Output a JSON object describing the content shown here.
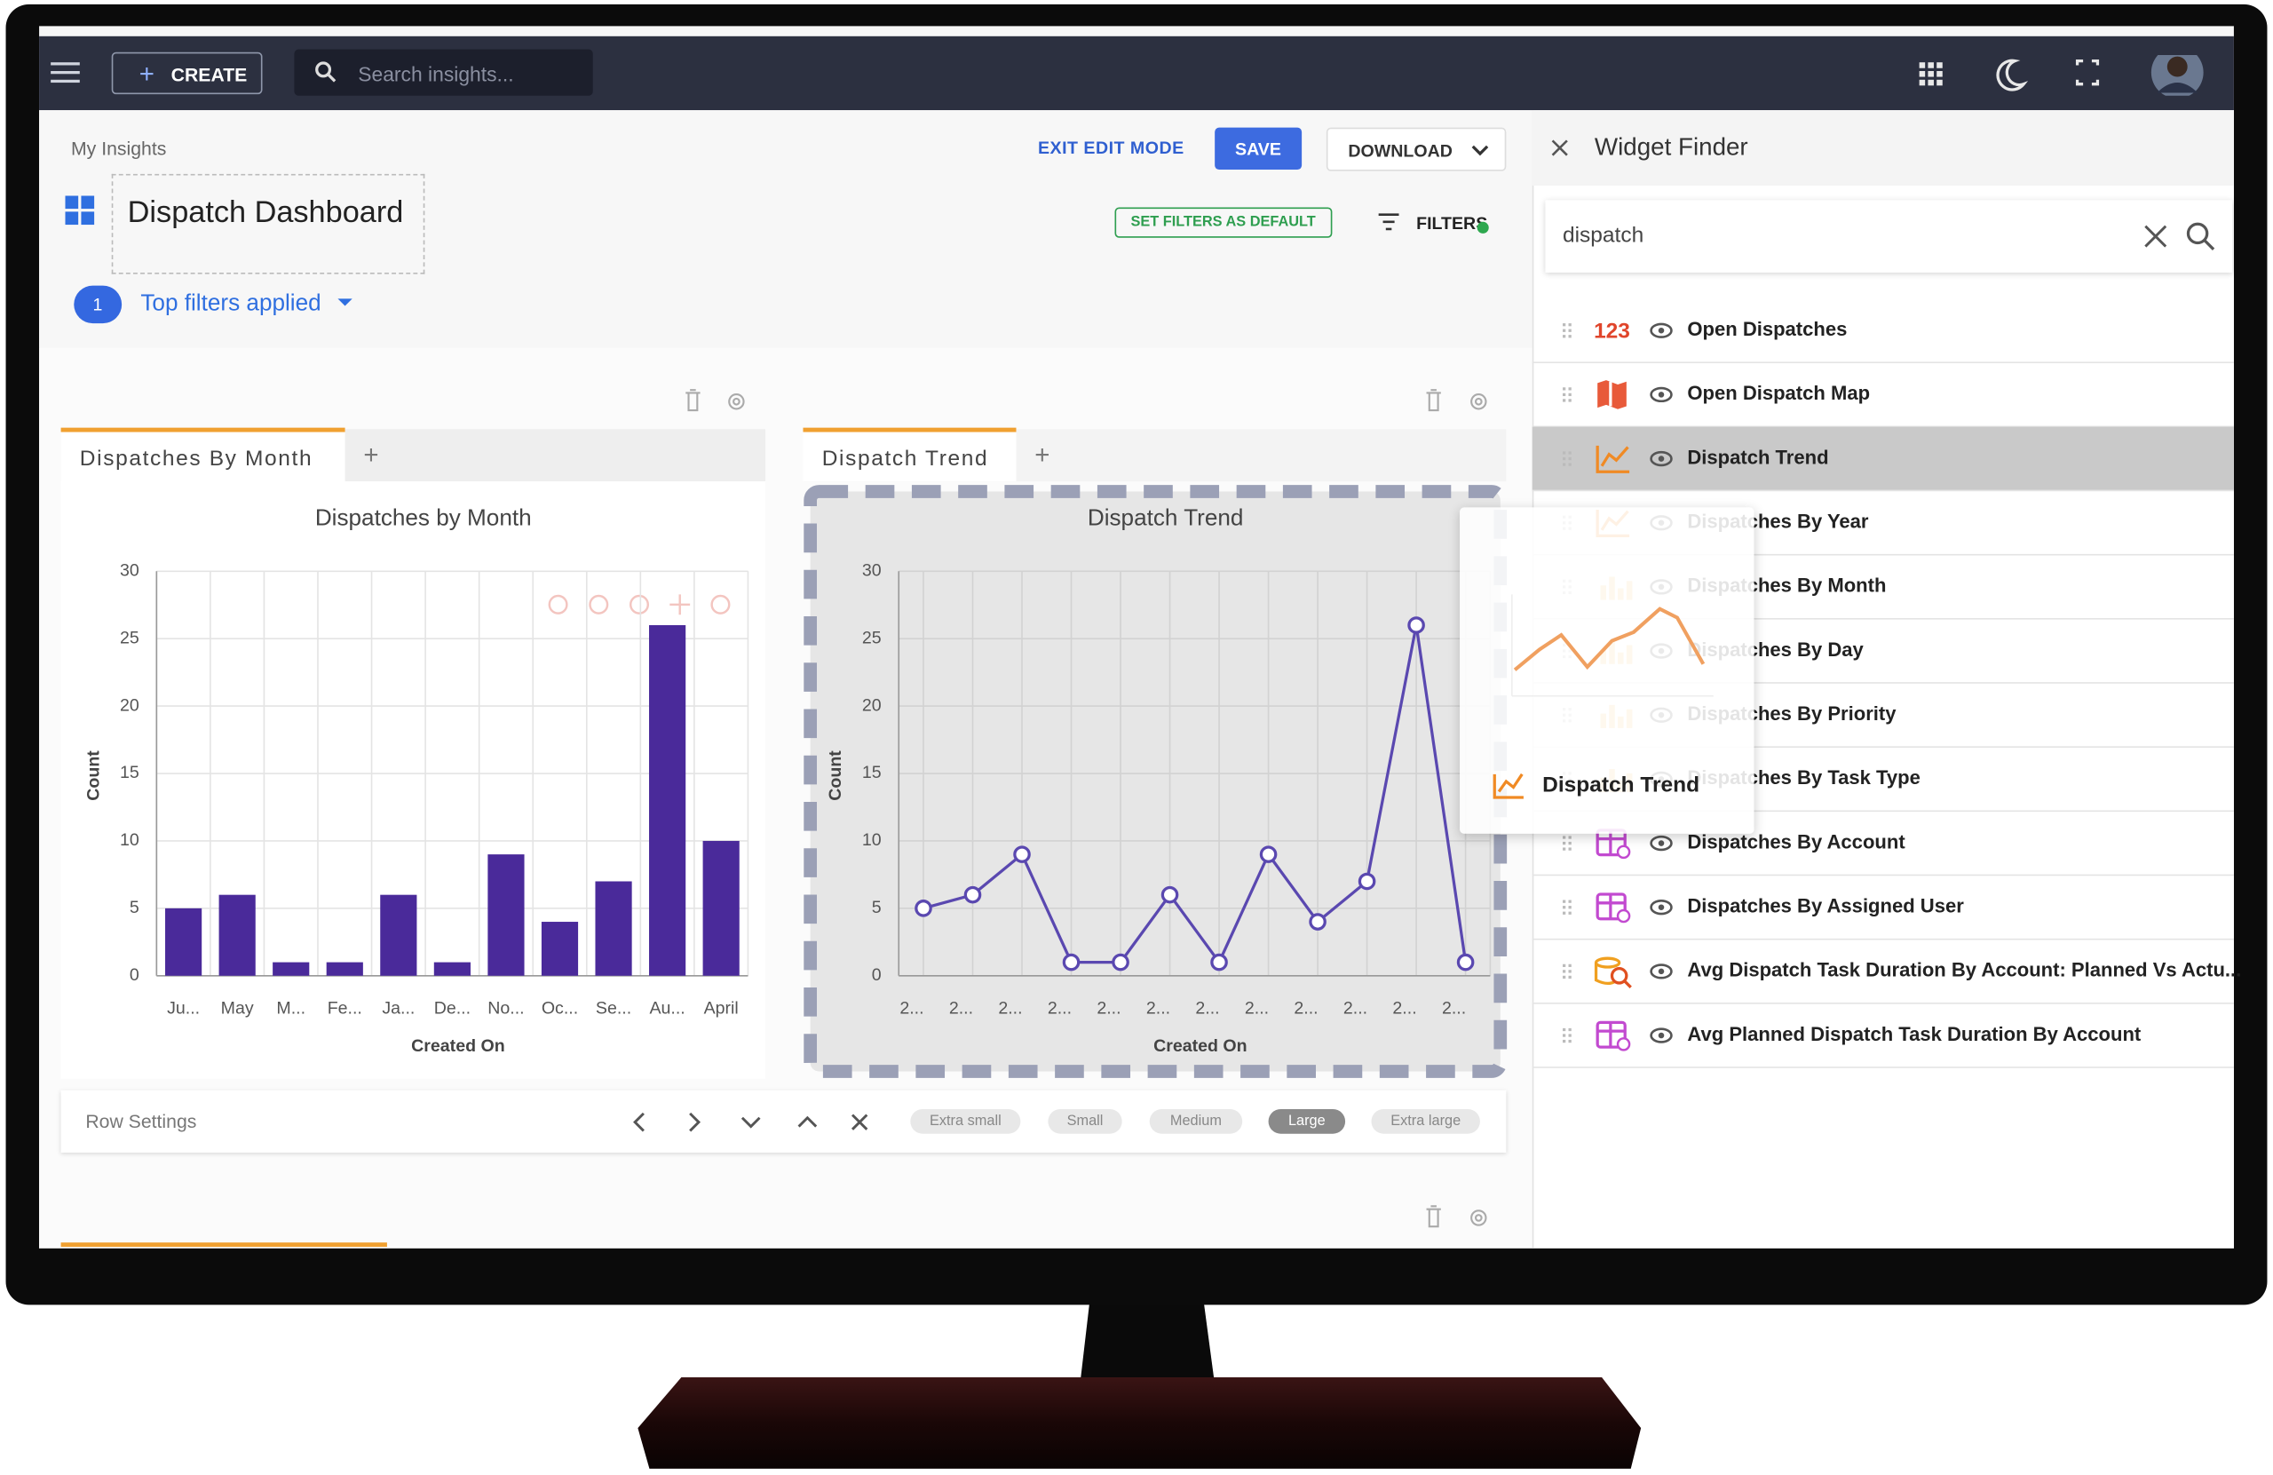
{
  "header": {
    "create": "CREATE",
    "search_placeholder": "Search insights..."
  },
  "breadcrumb": "My Insights",
  "actions": {
    "exit": "EXIT EDIT MODE",
    "save": "SAVE",
    "download": "DOWNLOAD"
  },
  "dashboard": {
    "title": "Dispatch Dashboard",
    "set_default": "SET FILTERS AS DEFAULT",
    "filters": "FILTERS",
    "filter_count": 1,
    "filter_label": "Top filters applied"
  },
  "tabs": [
    "Dispatches By Month",
    "Dispatch Trend"
  ],
  "chart_data": [
    {
      "type": "bar",
      "title": "Dispatches by Month",
      "xlabel": "Created On",
      "ylabel": "Count",
      "categories": [
        "Ju...",
        "May",
        "M...",
        "Fe...",
        "Ja...",
        "De...",
        "No...",
        "Oc...",
        "Se...",
        "Au...",
        "April"
      ],
      "values": [
        5,
        6,
        1,
        1,
        6,
        1,
        9,
        4,
        7,
        26,
        10
      ],
      "color": "#4a2a9a",
      "ylim": [
        0,
        30
      ],
      "yticks": [
        0,
        5,
        10,
        15,
        20,
        25,
        30
      ],
      "grid": true
    },
    {
      "type": "line",
      "title": "Dispatch Trend",
      "xlabel": "Created On",
      "ylabel": "Count",
      "categories": [
        "2...",
        "2...",
        "2...",
        "2...",
        "2...",
        "2...",
        "2...",
        "2...",
        "2...",
        "2...",
        "2...",
        "2..."
      ],
      "values": [
        5,
        6,
        9,
        1,
        1,
        6,
        1,
        9,
        4,
        7,
        26,
        1
      ],
      "color": "#5a48b0",
      "ylim": [
        0,
        30
      ],
      "yticks": [
        0,
        5,
        10,
        15,
        20,
        25,
        30
      ],
      "grid": true
    }
  ],
  "row_settings": {
    "label": "Row Settings",
    "sizes": [
      "Extra small",
      "Small",
      "Medium",
      "Large",
      "Extra large"
    ],
    "selected": 3
  },
  "widget_finder": {
    "title": "Widget Finder",
    "query": "dispatch",
    "selected": 2,
    "items": [
      {
        "icon": "123",
        "label": "Open Dispatches"
      },
      {
        "icon": "map",
        "label": "Open Dispatch Map"
      },
      {
        "icon": "line",
        "label": "Dispatch Trend"
      },
      {
        "icon": "line",
        "label": "Dispatches By Year"
      },
      {
        "icon": "bar",
        "label": "Dispatches By Month"
      },
      {
        "icon": "bar",
        "label": "Dispatches By Day"
      },
      {
        "icon": "bar",
        "label": "Dispatches By Priority"
      },
      {
        "icon": "bar",
        "label": "Dispatches By Task Type"
      },
      {
        "icon": "table",
        "label": "Dispatches By Account"
      },
      {
        "icon": "table",
        "label": "Dispatches By Assigned User"
      },
      {
        "icon": "search",
        "label": "Avg Dispatch Task Duration By Account: Planned Vs Actu..."
      },
      {
        "icon": "table",
        "label": "Avg Planned Dispatch Task Duration By Account"
      }
    ]
  },
  "drag_preview": {
    "label": "Dispatch Trend"
  }
}
